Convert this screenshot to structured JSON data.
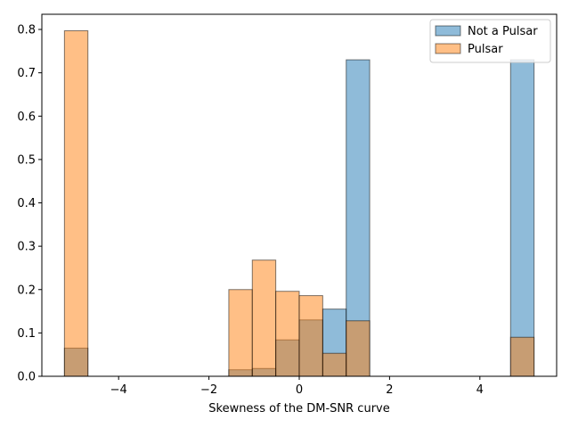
{
  "chart_data": {
    "type": "bar",
    "xlabel": "Skewness of the DM-SNR curve",
    "ylabel": "",
    "xlim": [
      -5.7,
      5.7
    ],
    "ylim": [
      0,
      0.835
    ],
    "xticks": [
      -4,
      -2,
      0,
      2,
      4
    ],
    "yticks": [
      0.0,
      0.1,
      0.2,
      0.3,
      0.4,
      0.5,
      0.6,
      0.7,
      0.8
    ],
    "bin_width": 0.52,
    "legend_position": "top-right",
    "series": [
      {
        "name": "Not a Pulsar",
        "color": "#1f77b4",
        "bins": [
          {
            "x0": -5.2,
            "value": 0.065
          },
          {
            "x0": -1.56,
            "value": 0.015
          },
          {
            "x0": -1.04,
            "value": 0.018
          },
          {
            "x0": -0.52,
            "value": 0.084
          },
          {
            "x0": 0.0,
            "value": 0.13
          },
          {
            "x0": 0.52,
            "value": 0.155
          },
          {
            "x0": 1.04,
            "value": 0.73
          },
          {
            "x0": 4.68,
            "value": 0.73
          }
        ]
      },
      {
        "name": "Pulsar",
        "color": "#ff7f0e",
        "bins": [
          {
            "x0": -5.2,
            "value": 0.797
          },
          {
            "x0": -1.56,
            "value": 0.2
          },
          {
            "x0": -1.04,
            "value": 0.268
          },
          {
            "x0": -0.52,
            "value": 0.196
          },
          {
            "x0": 0.0,
            "value": 0.186
          },
          {
            "x0": 0.52,
            "value": 0.053
          },
          {
            "x0": 1.04,
            "value": 0.128
          },
          {
            "x0": 4.68,
            "value": 0.09
          }
        ]
      }
    ]
  }
}
